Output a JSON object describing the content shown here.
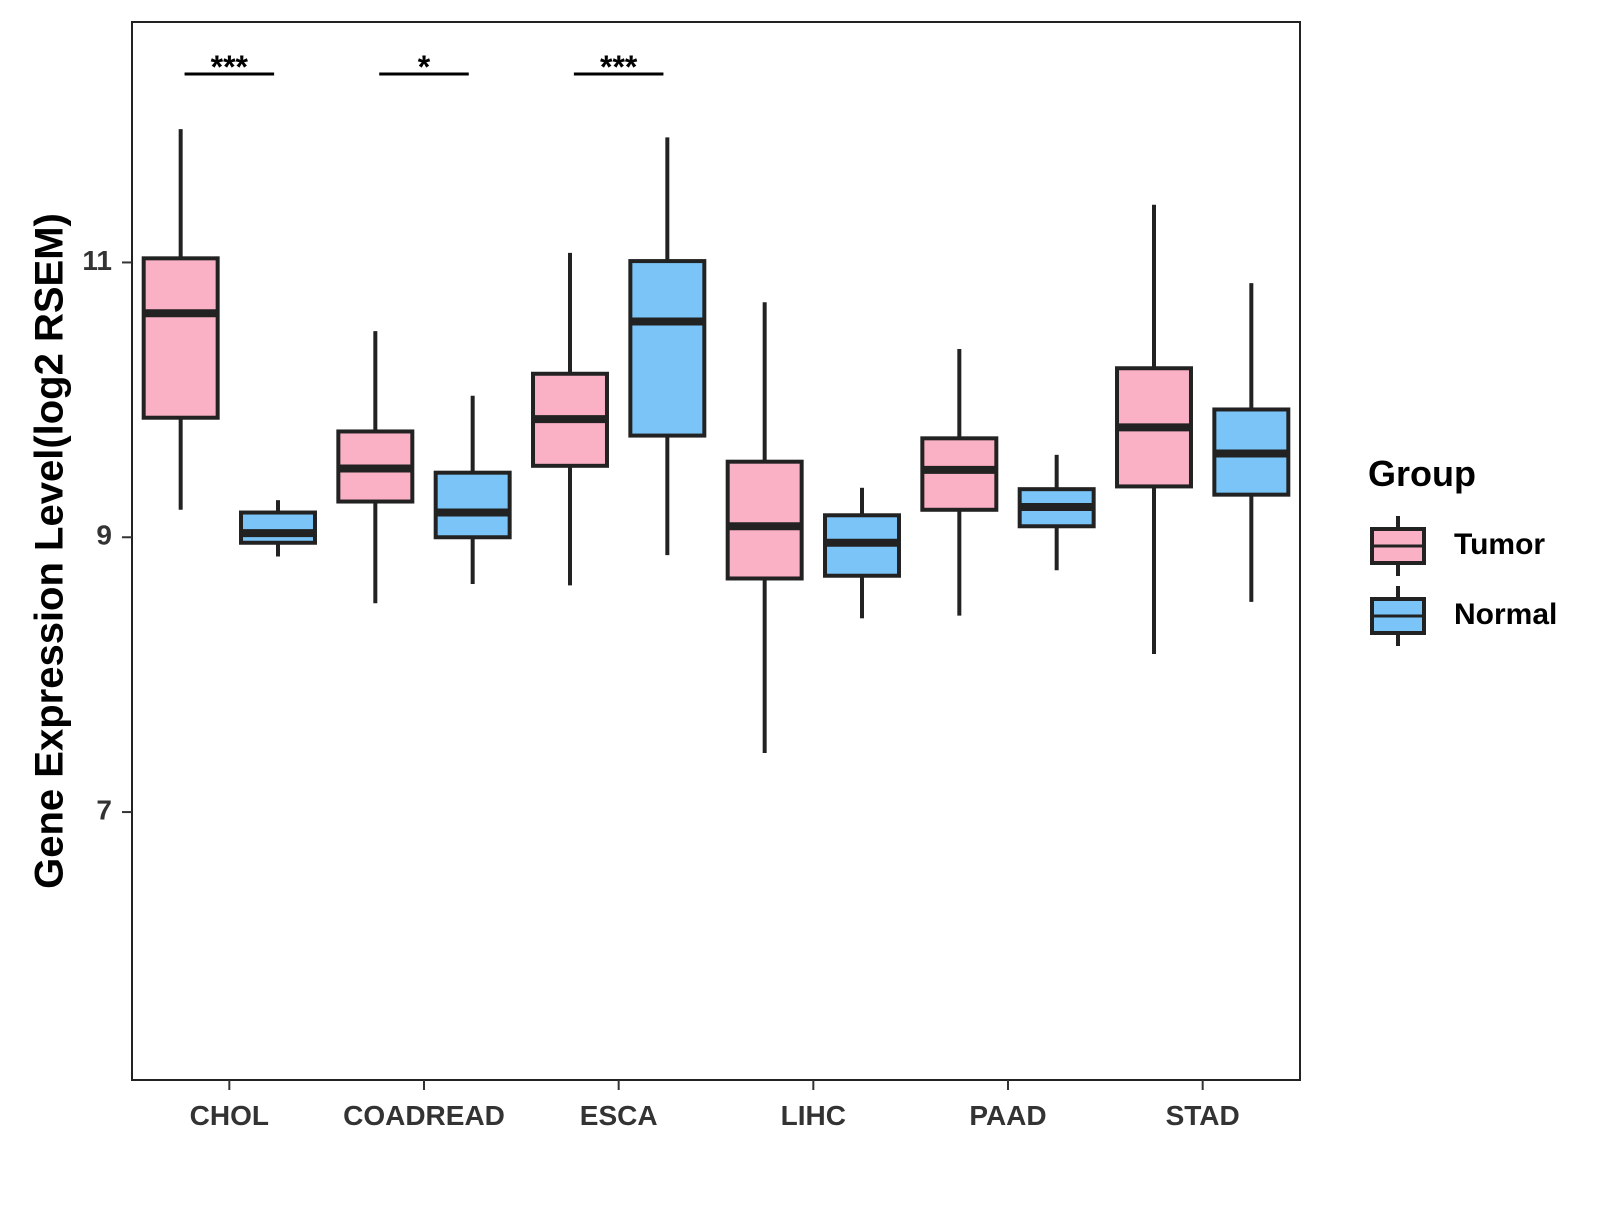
{
  "chart_data": {
    "type": "boxplot",
    "title": "",
    "xlabel": "",
    "ylabel": "Gene Expression Level(log2 RSEM)",
    "ylim": [
      5.05,
      12.75
    ],
    "yticks": [
      7,
      9,
      11
    ],
    "ytick_labels": [
      "7",
      "9",
      "11"
    ],
    "grid": false,
    "categories": [
      "CHOL",
      "COADREAD",
      "ESCA",
      "LIHC",
      "PAAD",
      "STAD"
    ],
    "legend": {
      "title": "Group",
      "position": "right",
      "entries": [
        "Tumor",
        "Normal"
      ]
    },
    "colors": {
      "Tumor": "#FBB1C5",
      "Normal": "#7AC4F8",
      "outline": "#222222"
    },
    "series": [
      {
        "name": "Tumor",
        "boxes": [
          {
            "min": 9.2,
            "q1": 9.87,
            "median": 10.63,
            "q3": 11.03,
            "max": 11.97
          },
          {
            "min": 8.52,
            "q1": 9.26,
            "median": 9.5,
            "q3": 9.77,
            "max": 10.5
          },
          {
            "min": 8.65,
            "q1": 9.52,
            "median": 9.86,
            "q3": 10.19,
            "max": 11.07
          },
          {
            "min": 7.43,
            "q1": 8.7,
            "median": 9.08,
            "q3": 9.55,
            "max": 10.71
          },
          {
            "min": 8.43,
            "q1": 9.2,
            "median": 9.49,
            "q3": 9.72,
            "max": 10.37
          },
          {
            "min": 8.15,
            "q1": 9.37,
            "median": 9.8,
            "q3": 10.23,
            "max": 11.42
          }
        ]
      },
      {
        "name": "Normal",
        "boxes": [
          {
            "min": 8.86,
            "q1": 8.96,
            "median": 9.03,
            "q3": 9.18,
            "max": 9.27
          },
          {
            "min": 8.66,
            "q1": 9.0,
            "median": 9.18,
            "q3": 9.47,
            "max": 10.03
          },
          {
            "min": 8.87,
            "q1": 9.74,
            "median": 10.57,
            "q3": 11.01,
            "max": 11.91
          },
          {
            "min": 8.41,
            "q1": 8.72,
            "median": 8.96,
            "q3": 9.16,
            "max": 9.36
          },
          {
            "min": 8.76,
            "q1": 9.08,
            "median": 9.22,
            "q3": 9.35,
            "max": 9.6
          },
          {
            "min": 8.53,
            "q1": 9.31,
            "median": 9.61,
            "q3": 9.93,
            "max": 10.85
          }
        ]
      }
    ],
    "annotations": [
      {
        "category": "CHOL",
        "label": "***"
      },
      {
        "category": "COADREAD",
        "label": "*"
      },
      {
        "category": "ESCA",
        "label": "***"
      }
    ]
  }
}
